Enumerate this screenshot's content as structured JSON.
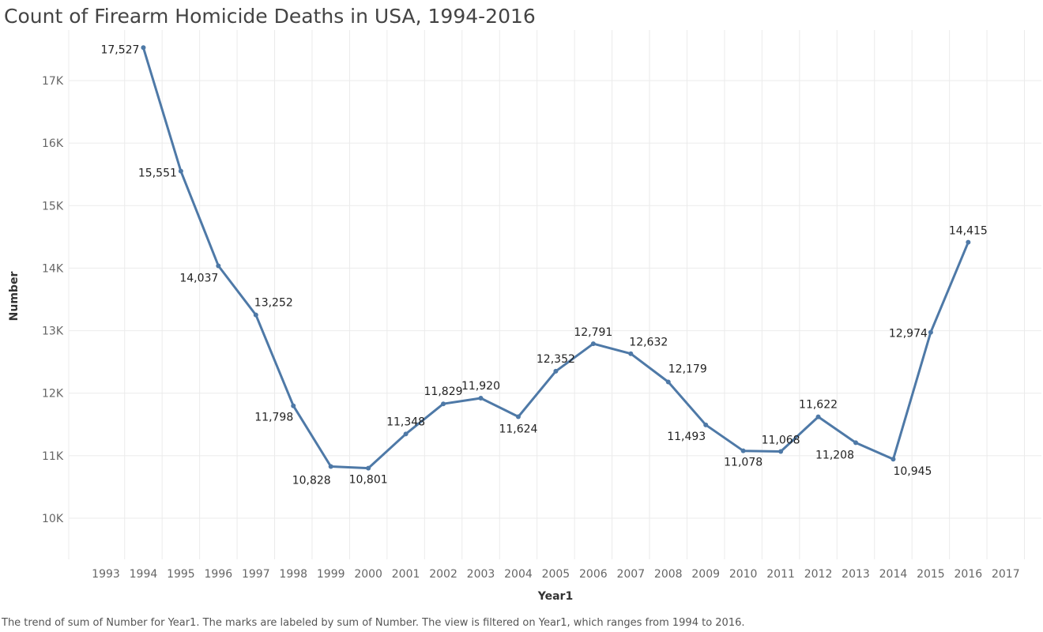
{
  "title": "Count of Firearm Homicide Deaths in USA, 1994-2016",
  "caption": "The trend of sum of Number for Year1.  The marks are labeled by sum of Number. The view is filtered on Year1, which ranges from 1994 to 2016.",
  "colors": {
    "line": "#4e79a7",
    "grid": "#ebebeb",
    "text": "#333333"
  },
  "chart_data": {
    "type": "line",
    "title": "Count of Firearm Homicide Deaths in USA, 1994-2016",
    "xlabel": "Year1",
    "ylabel": "Number",
    "x_ticks": [
      "1993",
      "1994",
      "1995",
      "1996",
      "1997",
      "1998",
      "1999",
      "2000",
      "2001",
      "2002",
      "2003",
      "2004",
      "2005",
      "2006",
      "2007",
      "2008",
      "2009",
      "2010",
      "2011",
      "2012",
      "2013",
      "2014",
      "2015",
      "2016",
      "2017"
    ],
    "xlim": [
      1993,
      2017
    ],
    "y_ticks": [
      10000,
      11000,
      12000,
      13000,
      14000,
      15000,
      16000,
      17000
    ],
    "y_tick_labels": [
      "10K",
      "11K",
      "12K",
      "13K",
      "14K",
      "15K",
      "16K",
      "17K"
    ],
    "ylim": [
      9350,
      17850
    ],
    "grid": true,
    "series": [
      {
        "x": [
          1994,
          1995,
          1996,
          1997,
          1998,
          1999,
          2000,
          2001,
          2002,
          2003,
          2004,
          2005,
          2006,
          2007,
          2008,
          2009,
          2010,
          2011,
          2012,
          2013,
          2014,
          2015,
          2016
        ],
        "values": [
          17527,
          15551,
          14037,
          13252,
          11798,
          10828,
          10801,
          11348,
          11829,
          11920,
          11624,
          12352,
          12791,
          12632,
          12179,
          11493,
          11078,
          11068,
          11622,
          11208,
          10945,
          12974,
          14415
        ],
        "labels": [
          "17,527",
          "15,551",
          "14,037",
          "13,252",
          "11,798",
          "10,828",
          "10,801",
          "11,348",
          "11,829",
          "11,920",
          "11,624",
          "12,352",
          "12,791",
          "12,632",
          "12,179",
          "11,493",
          "11,078",
          "11,068",
          "11,622",
          "11,208",
          "10,945",
          "12,974",
          "14,415"
        ]
      }
    ]
  }
}
